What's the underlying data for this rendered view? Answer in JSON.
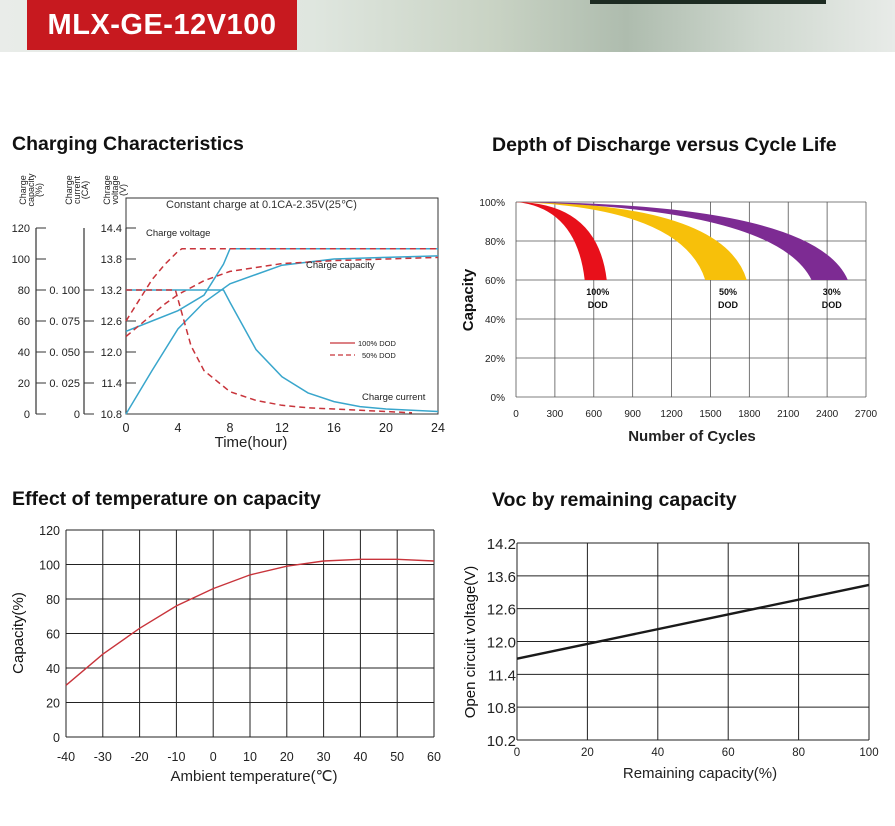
{
  "header": {
    "model": "MLX-GE-12V100"
  },
  "colors": {
    "brand_red": "#c7191f",
    "grid": "#222222",
    "blue": "#39a6cc",
    "red": "#c8343b",
    "dod_red": "#e8101a",
    "dod_yellow": "#f7c00a",
    "dod_purple": "#7d2b93"
  },
  "chart_data": [
    {
      "type": "line",
      "title": "Charging Characteristics",
      "subtitle": "Constant charge at 0.1CA-2.35V(25℃)",
      "xlabel": "Time(hour)",
      "x_ticks": [
        "0",
        "4",
        "8",
        "12",
        "16",
        "20",
        "24"
      ],
      "xlim": [
        0,
        24
      ],
      "axes": [
        {
          "label": "Charge capacity (%)",
          "label_lines": [
            "Charge",
            "capacity",
            "(%)"
          ],
          "ticks": [
            "0",
            "20",
            "40",
            "60",
            "80",
            "100",
            "120"
          ],
          "range": [
            0,
            120
          ]
        },
        {
          "label": "Charge current (CA)",
          "label_lines": [
            "Charge",
            "current",
            "(CA)"
          ],
          "ticks": [
            "0",
            "0. 025",
            "0. 050",
            "0. 075",
            "0. 100"
          ],
          "range": [
            0,
            0.15
          ]
        },
        {
          "label": "Chrage voltage (V)",
          "label_lines": [
            "Chrage",
            "voltage",
            "(V)"
          ],
          "ticks": [
            "10.8",
            "11.4",
            "12.0",
            "12.6",
            "13.2",
            "13.8",
            "14.4"
          ],
          "range": [
            10.8,
            14.4
          ]
        }
      ],
      "annotations": [
        "Charge voltage",
        "Charge capacity",
        "Charge current"
      ],
      "legend": {
        "position": "middle-right",
        "entries": [
          "100% DOD",
          "50% DOD"
        ]
      },
      "series": [
        {
          "name": "Charge voltage",
          "dod": "100% DOD",
          "axis": "voltage",
          "x": [
            0,
            2,
            4,
            6,
            7.5,
            8,
            12,
            16,
            20,
            24
          ],
          "y": [
            12.4,
            12.6,
            12.8,
            13.1,
            13.7,
            14.0,
            14.0,
            14.0,
            14.0,
            14.0
          ]
        },
        {
          "name": "Charge voltage",
          "dod": "50% DOD",
          "axis": "voltage",
          "x": [
            0,
            1,
            2,
            3,
            4,
            4.3,
            8,
            12,
            16,
            20,
            24
          ],
          "y": [
            12.6,
            13.0,
            13.4,
            13.7,
            13.95,
            14.0,
            14.0,
            14.0,
            14.0,
            14.0,
            14.0
          ]
        },
        {
          "name": "Charge capacity",
          "dod": "100% DOD",
          "axis": "capacity",
          "x": [
            0,
            2,
            4,
            6,
            8,
            10,
            12,
            16,
            20,
            24
          ],
          "y": [
            0,
            28,
            55,
            72,
            84,
            90,
            96,
            100,
            101,
            102
          ]
        },
        {
          "name": "Charge capacity",
          "dod": "50% DOD",
          "axis": "capacity",
          "x": [
            0,
            1,
            2,
            3,
            4,
            6,
            8,
            12,
            16,
            20,
            24
          ],
          "y": [
            50,
            57,
            64,
            71,
            77,
            86,
            92,
            97,
            99,
            100,
            101
          ]
        },
        {
          "name": "Charge current",
          "dod": "100% DOD",
          "axis": "current",
          "x": [
            0,
            7.5,
            8,
            10,
            12,
            14,
            16,
            18,
            20,
            22,
            24
          ],
          "y": [
            0.1,
            0.1,
            0.09,
            0.052,
            0.03,
            0.017,
            0.01,
            0.006,
            0.004,
            0.003,
            0.002
          ]
        },
        {
          "name": "Charge current",
          "dod": "50% DOD",
          "axis": "current",
          "x": [
            0,
            3.8,
            4.2,
            5,
            6,
            8,
            10,
            12,
            14,
            16,
            18,
            20,
            22
          ],
          "y": [
            0.1,
            0.1,
            0.085,
            0.055,
            0.035,
            0.018,
            0.011,
            0.007,
            0.005,
            0.004,
            0.003,
            0.002,
            0.001
          ]
        }
      ]
    },
    {
      "type": "area",
      "title": "Depth of Discharge versus Cycle Life",
      "xlabel": "Number of Cycles",
      "ylabel": "Capacity",
      "x_ticks": [
        "0",
        "300",
        "600",
        "900",
        "1200",
        "1500",
        "1800",
        "2100",
        "2400",
        "2700"
      ],
      "y_ticks": [
        "0%",
        "20%",
        "40%",
        "60%",
        "80%",
        "100%"
      ],
      "xlim": [
        0,
        2700
      ],
      "ylim": [
        0,
        100
      ],
      "series": [
        {
          "name": "100% DOD",
          "label_lines": [
            "100%",
            "DOD"
          ],
          "color": "#e8101a",
          "end_cycles": [
            530,
            700
          ]
        },
        {
          "name": "50% DOD",
          "label_lines": [
            "50%",
            "DOD"
          ],
          "color": "#f7c00a",
          "end_cycles": [
            1460,
            1780
          ]
        },
        {
          "name": "30% DOD",
          "label_lines": [
            "30%",
            "DOD"
          ],
          "color": "#7d2b93",
          "end_cycles": [
            2280,
            2560
          ]
        }
      ]
    },
    {
      "type": "line",
      "title": "Effect of temperature on capacity",
      "xlabel": "Ambient temperature(℃)",
      "ylabel": "Capacity(%)",
      "x_ticks": [
        "-40",
        "-30",
        "-20",
        "-10",
        "0",
        "10",
        "20",
        "30",
        "40",
        "50",
        "60"
      ],
      "y_ticks": [
        "0",
        "20",
        "40",
        "60",
        "80",
        "100",
        "120"
      ],
      "xlim": [
        -40,
        60
      ],
      "ylim": [
        0,
        120
      ],
      "series": [
        {
          "color": "#c8343b",
          "x": [
            -40,
            -30,
            -20,
            -10,
            0,
            10,
            20,
            30,
            40,
            50,
            60
          ],
          "y": [
            30,
            48,
            63,
            76,
            86,
            94,
            99,
            102,
            103,
            103,
            102
          ]
        }
      ]
    },
    {
      "type": "line",
      "title": "Voc by remaining capacity",
      "xlabel": "Remaining capacity(%)",
      "ylabel": "Open circuit voltage(V)",
      "x_ticks": [
        "0",
        "20",
        "40",
        "60",
        "80",
        "100"
      ],
      "y_ticks": [
        "10.2",
        "10.8",
        "11.4",
        "12.0",
        "12.6",
        "13.6",
        "14.2"
      ],
      "xlim": [
        0,
        100
      ],
      "ylim": [
        10.2,
        14.2
      ],
      "series": [
        {
          "color": "#1a1a1a",
          "x": [
            0,
            100
          ],
          "y": [
            11.85,
            13.35
          ]
        }
      ]
    }
  ]
}
